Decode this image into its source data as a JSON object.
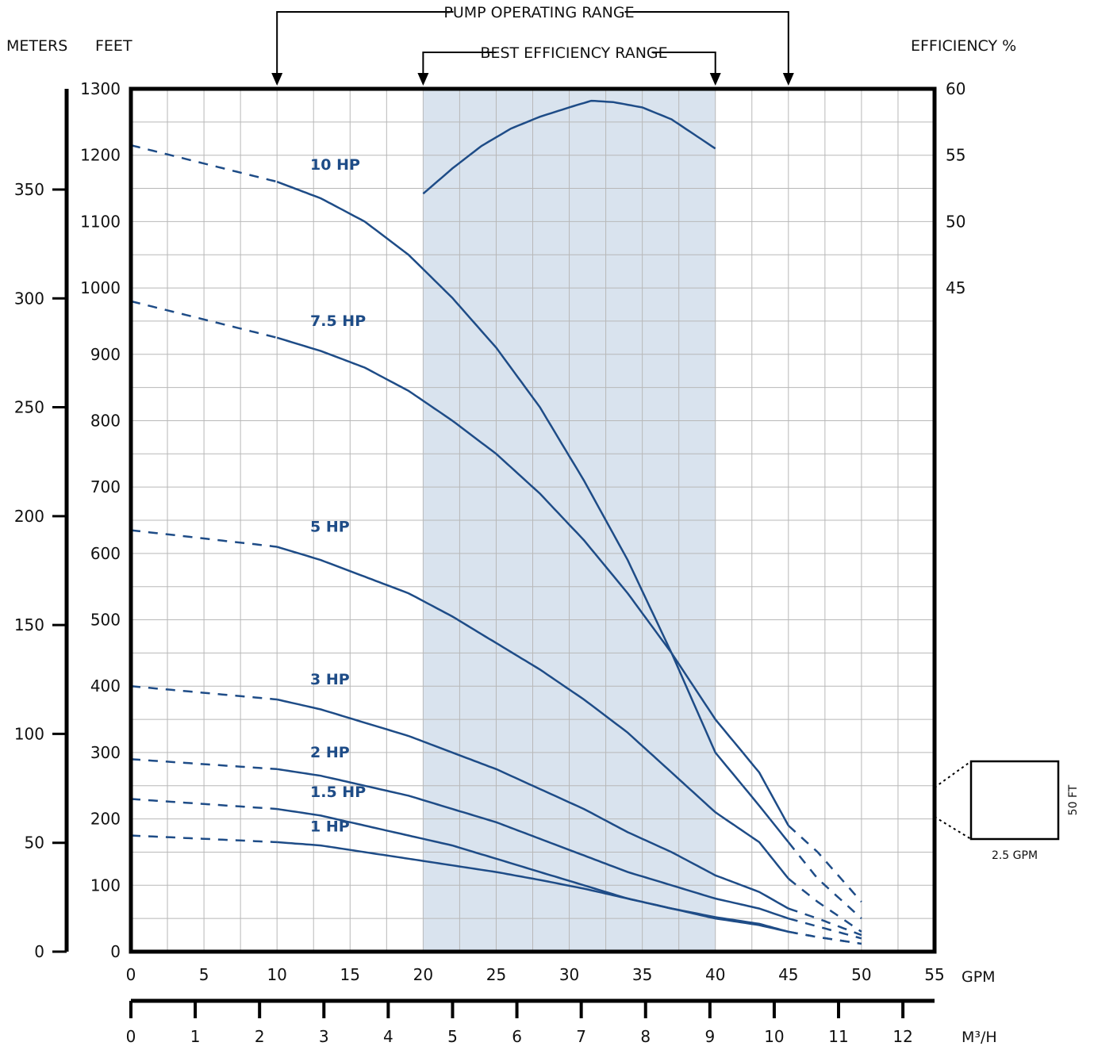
{
  "chart_data": {
    "type": "line",
    "title": "",
    "labels": {
      "pump_operating_range": "PUMP OPERATING RANGE",
      "best_efficiency_range": "BEST EFFICIENCY RANGE",
      "meters": "METERS",
      "feet": "FEET",
      "efficiency": "EFFICIENCY %",
      "gpm": "GPM",
      "m3h": "M³/H"
    },
    "pump_operating_range_gpm": [
      10,
      45
    ],
    "best_efficiency_range_gpm": [
      20,
      40
    ],
    "xlim": [
      0,
      55
    ],
    "ylim_feet": [
      0,
      1300
    ],
    "x_ticks_gpm": [
      "0",
      "5",
      "10",
      "15",
      "20",
      "25",
      "30",
      "35",
      "40",
      "45",
      "50",
      "55"
    ],
    "y_ticks_feet": [
      "0",
      "100",
      "200",
      "300",
      "400",
      "500",
      "600",
      "700",
      "800",
      "900",
      "1000",
      "1100",
      "1200",
      "1300"
    ],
    "y_ticks_meters": [
      "0",
      "50",
      "100",
      "150",
      "200",
      "250",
      "300",
      "350"
    ],
    "y_ticks_efficiency": [
      "45",
      "50",
      "55",
      "60"
    ],
    "m3h_ticks": [
      "0",
      "1",
      "2",
      "3",
      "4",
      "5",
      "6",
      "7",
      "8",
      "9",
      "10",
      "11",
      "12"
    ],
    "series": [
      {
        "name": "10 HP",
        "solid_from_gpm": 10,
        "solid_to_gpm": 45,
        "x": [
          0,
          10,
          13,
          16,
          19,
          22,
          25,
          28,
          31,
          34,
          37,
          40,
          43,
          45,
          47,
          50
        ],
        "y": [
          1215,
          1160,
          1135,
          1100,
          1050,
          985,
          910,
          820,
          710,
          590,
          450,
          300,
          220,
          165,
          110,
          50
        ]
      },
      {
        "name": "7.5 HP",
        "solid_from_gpm": 10,
        "solid_to_gpm": 45,
        "x": [
          0,
          10,
          13,
          16,
          19,
          22,
          25,
          28,
          31,
          34,
          37,
          40,
          43,
          45,
          47,
          50
        ],
        "y": [
          980,
          925,
          905,
          880,
          845,
          800,
          750,
          690,
          620,
          540,
          450,
          350,
          270,
          190,
          150,
          75
        ]
      },
      {
        "name": "5 HP",
        "solid_from_gpm": 10,
        "solid_to_gpm": 45,
        "x": [
          0,
          10,
          13,
          16,
          19,
          22,
          25,
          28,
          31,
          34,
          37,
          40,
          43,
          45,
          47,
          50
        ],
        "y": [
          635,
          610,
          590,
          565,
          540,
          505,
          465,
          425,
          380,
          330,
          270,
          210,
          165,
          110,
          75,
          30
        ]
      },
      {
        "name": "3 HP",
        "solid_from_gpm": 10,
        "solid_to_gpm": 45,
        "x": [
          0,
          10,
          13,
          16,
          19,
          22,
          25,
          28,
          31,
          34,
          37,
          40,
          43,
          45,
          47,
          50
        ],
        "y": [
          400,
          380,
          365,
          345,
          325,
          300,
          275,
          245,
          215,
          180,
          150,
          115,
          90,
          65,
          50,
          25
        ]
      },
      {
        "name": "2 HP",
        "solid_from_gpm": 10,
        "solid_to_gpm": 45,
        "x": [
          0,
          10,
          13,
          16,
          19,
          22,
          25,
          28,
          31,
          34,
          37,
          40,
          43,
          45,
          47,
          50
        ],
        "y": [
          290,
          275,
          265,
          250,
          235,
          215,
          195,
          170,
          145,
          120,
          100,
          80,
          65,
          50,
          38,
          20
        ]
      },
      {
        "name": "1.5 HP",
        "solid_from_gpm": 10,
        "solid_to_gpm": 45,
        "x": [
          0,
          10,
          13,
          16,
          19,
          22,
          25,
          28,
          31,
          34,
          37,
          40,
          43,
          45,
          47,
          50
        ],
        "y": [
          230,
          215,
          205,
          190,
          175,
          160,
          140,
          120,
          100,
          80,
          65,
          50,
          40,
          30,
          22,
          12
        ]
      },
      {
        "name": "1 HP",
        "solid_from_gpm": 10,
        "solid_to_gpm": 45,
        "x": [
          0,
          10,
          13,
          16,
          19,
          22,
          25,
          28,
          31,
          34,
          37,
          40,
          43,
          45,
          47,
          50
        ],
        "y": [
          175,
          165,
          160,
          150,
          140,
          130,
          120,
          108,
          95,
          80,
          65,
          52,
          42,
          30,
          22,
          12
        ]
      }
    ],
    "efficiency_curve": {
      "name": "",
      "x": [
        20,
        22,
        24,
        26,
        28,
        30,
        31.5,
        33,
        35,
        37,
        40
      ],
      "y": [
        52.1,
        54.0,
        55.7,
        57.0,
        57.9,
        58.6,
        59.1,
        59.0,
        58.6,
        57.7,
        55.5
      ]
    },
    "scale_box": {
      "width_label": "2.5 GPM",
      "height_label": "50 FT"
    }
  }
}
